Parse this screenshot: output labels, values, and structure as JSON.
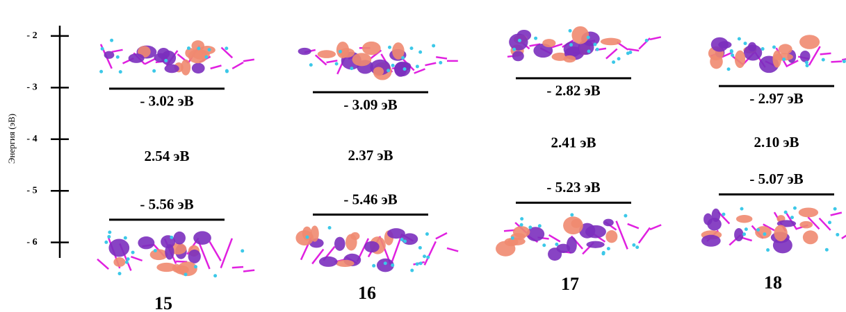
{
  "chart_data": {
    "type": "energy-level",
    "y_label": "Энергия (эВ)",
    "ylim": [
      -6.3,
      -1.8
    ],
    "yticks": [
      {
        "value": -2,
        "label": "- 2"
      },
      {
        "value": -3,
        "label": "- 3"
      },
      {
        "value": -4,
        "label": "- 4"
      },
      {
        "value": -5,
        "label": "- 5"
      },
      {
        "value": -6,
        "label": "- 6"
      }
    ],
    "categories": [
      "15",
      "16",
      "17",
      "18"
    ],
    "lumo": {
      "values": [
        -3.02,
        -3.09,
        -2.82,
        -2.97
      ],
      "value_labels": [
        "- 3.02 эВ",
        "- 3.09 эВ",
        "- 2.82 эВ",
        "- 2.97 эВ"
      ]
    },
    "homo": {
      "values": [
        -5.56,
        -5.46,
        -5.23,
        -5.07
      ],
      "value_labels": [
        "- 5.56 эВ",
        "- 5.46 эВ",
        "- 5.23 эВ",
        "- 5.07 эВ"
      ]
    },
    "gap": {
      "values": [
        2.54,
        2.37,
        2.41,
        2.1
      ],
      "value_labels": [
        "2.54 эВ",
        "2.37 эВ",
        "2.41 эВ",
        "2.10 эВ"
      ]
    },
    "level_color": "#000000"
  }
}
